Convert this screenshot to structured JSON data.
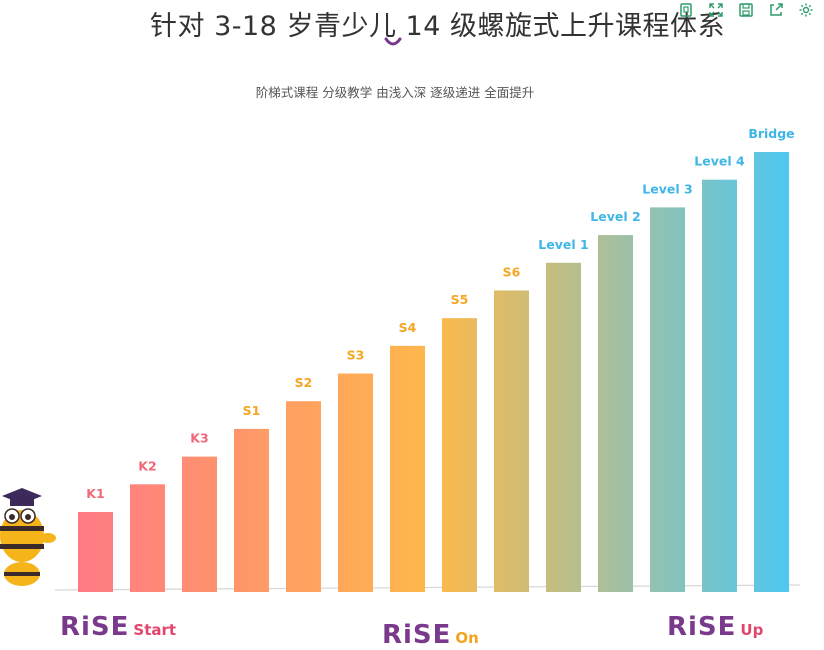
{
  "header": {
    "title": "针对 3-18 岁青少儿 14 级螺旋式上升课程体系",
    "subtitle": "阶梯式课程 分级教学 由浅入深 逐级递进 全面提升"
  },
  "toolbar": {
    "icons": [
      "copy-icon",
      "expand-icon",
      "save-icon",
      "share-icon",
      "settings-icon"
    ]
  },
  "brands": [
    {
      "logo": "RiSE",
      "suffix": "Start"
    },
    {
      "logo": "RiSE",
      "suffix": "On"
    },
    {
      "logo": "RiSE",
      "suffix": "Up"
    }
  ],
  "colors": {
    "gradient_start": "#ff7a85",
    "gradient_mid": "#ffb84a",
    "gradient_end": "#4ec8f0",
    "label_pink": "#f0687a",
    "label_orange": "#f5a623",
    "label_blue": "#3fb6e6"
  },
  "chart_data": {
    "type": "bar",
    "categories": [
      "K1",
      "K2",
      "K3",
      "S1",
      "S2",
      "S3",
      "S4",
      "S5",
      "S6",
      "Level 1",
      "Level 2",
      "Level 3",
      "Level 4",
      "Bridge"
    ],
    "values": [
      1,
      2,
      3,
      4,
      5,
      6,
      7,
      8,
      9,
      10,
      11,
      12,
      13,
      14
    ],
    "title": "",
    "xlabel": "",
    "ylabel": "",
    "grid": false,
    "legend": "none"
  }
}
